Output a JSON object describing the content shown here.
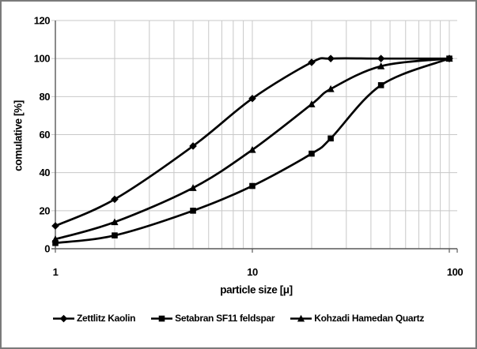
{
  "figure": {
    "background": "#ffffff",
    "border_color": "#7a7a7a"
  },
  "chart_data": {
    "type": "line",
    "title": "",
    "xlabel": "particle size [μ]",
    "ylabel": "comulative [%]",
    "x_scale": "log",
    "xlim": [
      1,
      100
    ],
    "ylim": [
      0,
      120
    ],
    "grid": true,
    "legend_position": "bottom",
    "x": [
      1,
      2,
      5,
      10,
      20,
      25,
      45,
      100
    ],
    "series": [
      {
        "name": "Zettlitz Kaolin",
        "marker": "diamond",
        "color": "#000000",
        "values": [
          12,
          26,
          54,
          79,
          98,
          100,
          100,
          100
        ]
      },
      {
        "name": "Setabran SF11 feldspar",
        "marker": "square",
        "color": "#000000",
        "values": [
          3,
          7,
          20,
          33,
          50,
          58,
          86,
          100
        ]
      },
      {
        "name": "Kohzadi Hamedan Quartz",
        "marker": "triangle",
        "color": "#000000",
        "values": [
          5,
          14,
          32,
          52,
          76,
          84,
          96,
          100
        ]
      }
    ],
    "xtick_values": [
      1,
      10,
      100
    ],
    "xtick_labels": [
      "1",
      "10",
      "100"
    ],
    "ytick_values": [
      0,
      20,
      40,
      60,
      80,
      100,
      120
    ],
    "x_gridline_values": [
      2,
      3,
      4,
      5,
      6,
      7,
      8,
      9,
      10,
      20,
      30,
      40,
      50,
      60,
      70,
      80,
      90,
      100
    ],
    "grid_color": "#c8c8c8",
    "axis_color": "#595959",
    "line_color": "#000000"
  }
}
